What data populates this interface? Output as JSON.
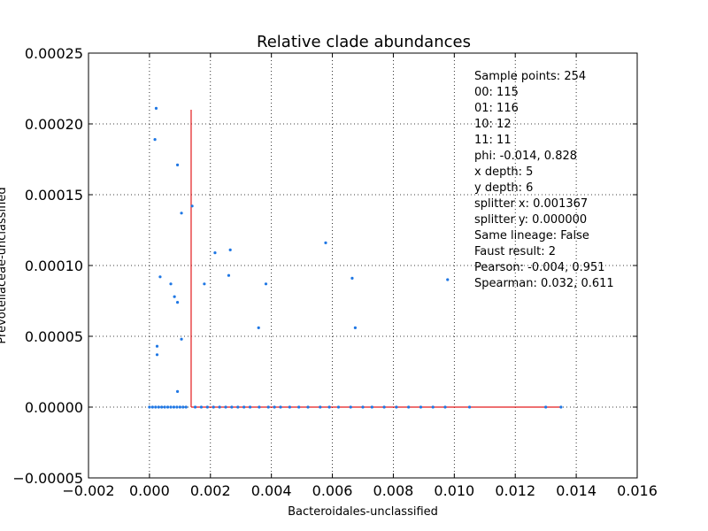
{
  "chart_data": {
    "type": "scatter",
    "title": "Relative clade abundances",
    "xlabel": "Bacteroidales-unclassified",
    "ylabel": "Prevotellaceae-unclassified",
    "xlim": [
      -0.002,
      0.016
    ],
    "ylim": [
      -5e-05,
      0.00025
    ],
    "xticks": [
      "−0.002",
      "0.000",
      "0.002",
      "0.004",
      "0.006",
      "0.008",
      "0.010",
      "0.012",
      "0.014",
      "0.016"
    ],
    "yticks": [
      "−0.00005",
      "0.00000",
      "0.00005",
      "0.00010",
      "0.00015",
      "0.00020",
      "0.00025"
    ],
    "grid": true,
    "point_color": "#1f77e4",
    "line_color": "#e31a1c",
    "annotations": [
      "Sample points: 254",
      "00: 115",
      "01: 116",
      "10: 12",
      "11: 11",
      "phi: -0.014, 0.828",
      "x depth: 5",
      "y depth: 6",
      "splitter x: 0.001367",
      "splitter y: 0.000000",
      "Same lineage: False",
      "Faust result: 2",
      "Pearson: -0.004, 0.951",
      "Spearman: 0.032, 0.611"
    ],
    "splitter_lines": [
      {
        "x": [
          0.001367,
          0.001367
        ],
        "y": [
          0.0,
          0.00021
        ]
      },
      {
        "x": [
          0.001367,
          0.0135
        ],
        "y": [
          0.0,
          0.0
        ]
      }
    ],
    "series": [
      {
        "points": [
          [
            0.00022,
            0.000211
          ],
          [
            0.00018,
            0.000189
          ],
          [
            0.00092,
            0.000171
          ],
          [
            0.00105,
            0.000137
          ],
          [
            0.0014,
            0.000142
          ],
          [
            0.00215,
            0.000109
          ],
          [
            0.00265,
            0.000111
          ],
          [
            0.00578,
            0.000116
          ],
          [
            0.00035,
            9.2e-05
          ],
          [
            0.0007,
            8.7e-05
          ],
          [
            0.00082,
            7.8e-05
          ],
          [
            0.00092,
            7.4e-05
          ],
          [
            0.0018,
            8.7e-05
          ],
          [
            0.0026,
            9.3e-05
          ],
          [
            0.00382,
            8.7e-05
          ],
          [
            0.00665,
            9.1e-05
          ],
          [
            0.00978,
            9e-05
          ],
          [
            0.00025,
            4.3e-05
          ],
          [
            0.00025,
            3.7e-05
          ],
          [
            0.00105,
            4.8e-05
          ],
          [
            0.00358,
            5.6e-05
          ],
          [
            0.00675,
            5.6e-05
          ],
          [
            0.00092,
            1.1e-05
          ],
          [
            0.0,
            0.0
          ],
          [
            0.0001,
            0.0
          ],
          [
            0.0002,
            0.0
          ],
          [
            0.0003,
            0.0
          ],
          [
            0.0004,
            0.0
          ],
          [
            0.0005,
            0.0
          ],
          [
            0.0006,
            0.0
          ],
          [
            0.0007,
            0.0
          ],
          [
            0.0008,
            0.0
          ],
          [
            0.0009,
            0.0
          ],
          [
            0.001,
            0.0
          ],
          [
            0.0011,
            0.0
          ],
          [
            0.0012,
            0.0
          ],
          [
            0.0015,
            0.0
          ],
          [
            0.0017,
            0.0
          ],
          [
            0.0019,
            0.0
          ],
          [
            0.0021,
            0.0
          ],
          [
            0.0023,
            0.0
          ],
          [
            0.0025,
            0.0
          ],
          [
            0.0027,
            0.0
          ],
          [
            0.0029,
            0.0
          ],
          [
            0.0031,
            0.0
          ],
          [
            0.0033,
            0.0
          ],
          [
            0.0036,
            0.0
          ],
          [
            0.0039,
            0.0
          ],
          [
            0.0041,
            0.0
          ],
          [
            0.0043,
            0.0
          ],
          [
            0.0046,
            0.0
          ],
          [
            0.0049,
            0.0
          ],
          [
            0.0052,
            0.0
          ],
          [
            0.0056,
            0.0
          ],
          [
            0.0059,
            0.0
          ],
          [
            0.0062,
            0.0
          ],
          [
            0.0066,
            0.0
          ],
          [
            0.007,
            0.0
          ],
          [
            0.0073,
            0.0
          ],
          [
            0.0077,
            0.0
          ],
          [
            0.0081,
            0.0
          ],
          [
            0.0085,
            0.0
          ],
          [
            0.0089,
            0.0
          ],
          [
            0.0093,
            0.0
          ],
          [
            0.0097,
            0.0
          ],
          [
            0.0105,
            0.0
          ],
          [
            0.013,
            0.0
          ],
          [
            0.0135,
            0.0
          ]
        ]
      }
    ]
  }
}
